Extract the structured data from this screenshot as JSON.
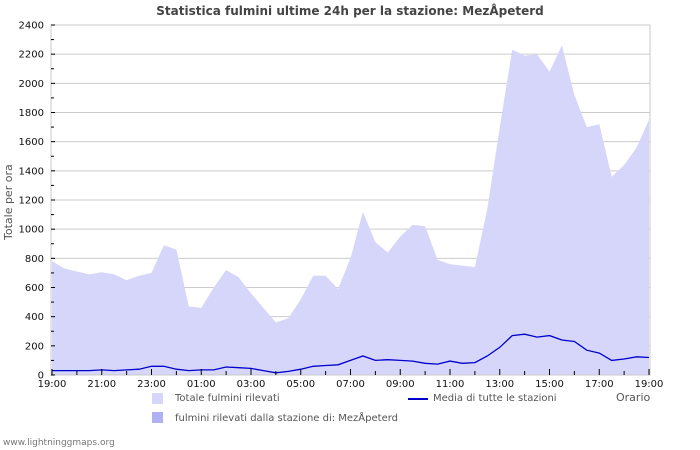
{
  "title": "Statistica fulmini ultime 24h per la stazione: MezÅpeterd",
  "footer": "www.lightninggmaps.org",
  "chart_data": {
    "type": "area",
    "title": "Statistica fulmini ultime 24h per la stazione: MezÅpeterd",
    "xlabel": "Orario",
    "ylabel": "Totale per ora",
    "ylim": [
      0,
      2400
    ],
    "yticks": [
      0,
      200,
      400,
      600,
      800,
      1000,
      1200,
      1400,
      1600,
      1800,
      2000,
      2200,
      2400
    ],
    "xtick_labels": [
      "19:00",
      "21:00",
      "23:00",
      "01:00",
      "03:00",
      "05:00",
      "07:00",
      "09:00",
      "11:00",
      "13:00",
      "15:00",
      "17:00",
      "19:00"
    ],
    "grid": true,
    "legend_position": "bottom",
    "x": [
      "19:00",
      "19:30",
      "20:00",
      "20:30",
      "21:00",
      "21:30",
      "22:00",
      "22:30",
      "23:00",
      "23:30",
      "00:00",
      "00:30",
      "01:00",
      "01:30",
      "02:00",
      "02:30",
      "03:00",
      "03:30",
      "04:00",
      "04:30",
      "05:00",
      "05:30",
      "06:00",
      "06:30",
      "07:00",
      "07:30",
      "08:00",
      "08:30",
      "09:00",
      "09:30",
      "10:00",
      "10:30",
      "11:00",
      "11:30",
      "12:00",
      "12:30",
      "13:00",
      "13:30",
      "14:00",
      "14:30",
      "15:00",
      "15:30",
      "16:00",
      "16:30",
      "17:00",
      "17:30",
      "18:00",
      "18:30",
      "19:00"
    ],
    "series": [
      {
        "name": "Totale fulmini rilevati",
        "style": "area",
        "color": "#d6d6fb",
        "values": [
          780,
          730,
          710,
          690,
          705,
          690,
          650,
          680,
          700,
          890,
          860,
          470,
          460,
          600,
          720,
          670,
          560,
          460,
          360,
          390,
          520,
          680,
          680,
          590,
          800,
          1120,
          910,
          840,
          950,
          1030,
          1020,
          790,
          760,
          750,
          740,
          1140,
          1700,
          2230,
          2190,
          2200,
          2080,
          2260,
          1920,
          1700,
          1720,
          1360,
          1440,
          1560,
          1750
        ]
      },
      {
        "name": "fulmini rilevati dalla stazione di: MezÅpeterd",
        "style": "area",
        "color": "#b0b0f5",
        "values": [
          0,
          0,
          0,
          0,
          0,
          0,
          0,
          0,
          0,
          0,
          0,
          0,
          0,
          0,
          0,
          0,
          0,
          0,
          0,
          0,
          0,
          0,
          0,
          0,
          0,
          0,
          0,
          0,
          0,
          0,
          0,
          0,
          0,
          0,
          0,
          0,
          0,
          0,
          0,
          0,
          0,
          0,
          0,
          0,
          0,
          0,
          0,
          0,
          0
        ]
      },
      {
        "name": "Media di tutte le stazioni",
        "style": "line",
        "color": "#0000cc",
        "values": [
          30,
          30,
          30,
          30,
          35,
          30,
          35,
          40,
          60,
          60,
          40,
          30,
          35,
          35,
          55,
          50,
          45,
          30,
          15,
          25,
          40,
          60,
          65,
          70,
          100,
          130,
          100,
          105,
          100,
          95,
          80,
          75,
          95,
          80,
          85,
          130,
          190,
          270,
          280,
          260,
          270,
          240,
          230,
          170,
          150,
          100,
          110,
          125,
          120
        ]
      }
    ]
  },
  "legend": {
    "total": "Totale fulmini rilevati",
    "station": "fulmini rilevati dalla stazione di: MezÅpeterd",
    "average": "Media di tutte le stazioni"
  },
  "axis": {
    "ylabel": "Totale per ora",
    "xlabel": "Orario"
  }
}
